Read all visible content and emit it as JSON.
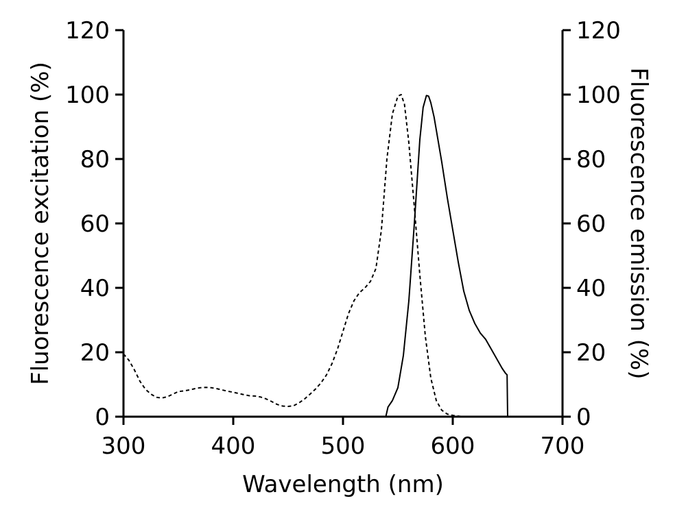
{
  "chart_data": {
    "type": "line",
    "xlabel": "Wavelength (nm)",
    "ylabel": "Fluorescence excitation (%)",
    "y2label": "Fluorescence emission (%)",
    "xlim": [
      300,
      700
    ],
    "ylim": [
      0,
      120
    ],
    "y2lim": [
      0,
      120
    ],
    "xticks": [
      "300",
      "400",
      "500",
      "600",
      "700"
    ],
    "yticks": [
      "0",
      "20",
      "40",
      "60",
      "80",
      "100",
      "120"
    ],
    "y2ticks": [
      "0",
      "20",
      "40",
      "60",
      "80",
      "100",
      "120"
    ],
    "grid": false,
    "legend": "none",
    "series": [
      {
        "style": "dashed",
        "axis": "left",
        "x": [
          300,
          305,
          310,
          315,
          320,
          325,
          330,
          335,
          340,
          345,
          350,
          355,
          360,
          365,
          370,
          375,
          380,
          385,
          390,
          395,
          400,
          405,
          410,
          415,
          420,
          425,
          430,
          435,
          440,
          445,
          450,
          455,
          460,
          465,
          470,
          475,
          480,
          485,
          490,
          495,
          500,
          505,
          510,
          515,
          520,
          525,
          530,
          535,
          540,
          545,
          550,
          553,
          556,
          560,
          565,
          570,
          575,
          580,
          585,
          590,
          595,
          600,
          605,
          610
        ],
        "y": [
          19.5,
          17.5,
          14.5,
          11,
          8.5,
          7,
          6,
          5.8,
          6.2,
          7,
          7.8,
          8,
          8.3,
          8.7,
          9,
          9.1,
          9,
          8.7,
          8.3,
          7.9,
          7.6,
          7.2,
          6.8,
          6.5,
          6.4,
          6.1,
          5.5,
          4.7,
          3.8,
          3.3,
          3.2,
          3.4,
          4.3,
          5.5,
          7,
          8.6,
          10.5,
          13,
          16.5,
          21,
          26.5,
          32,
          36,
          38.5,
          40,
          42,
          46,
          58,
          80,
          94,
          99.5,
          100,
          97,
          85,
          65,
          44,
          25,
          12,
          5,
          2,
          0.8,
          0.4,
          0.2,
          0
        ]
      },
      {
        "style": "solid",
        "axis": "right",
        "x": [
          539,
          541,
          545,
          550,
          555,
          560,
          565,
          570,
          573,
          576,
          578,
          580,
          583,
          586,
          590,
          595,
          600,
          605,
          610,
          615,
          620,
          625,
          630,
          635,
          640,
          645,
          648,
          649.5,
          650,
          651
        ],
        "y": [
          0,
          3,
          5,
          9,
          19,
          36,
          60,
          86,
          96,
          99.7,
          99.5,
          97.5,
          93,
          87,
          79,
          68,
          58,
          48,
          39,
          33,
          29,
          26,
          24,
          21,
          18,
          15,
          13.5,
          13,
          0,
          0
        ]
      }
    ]
  }
}
